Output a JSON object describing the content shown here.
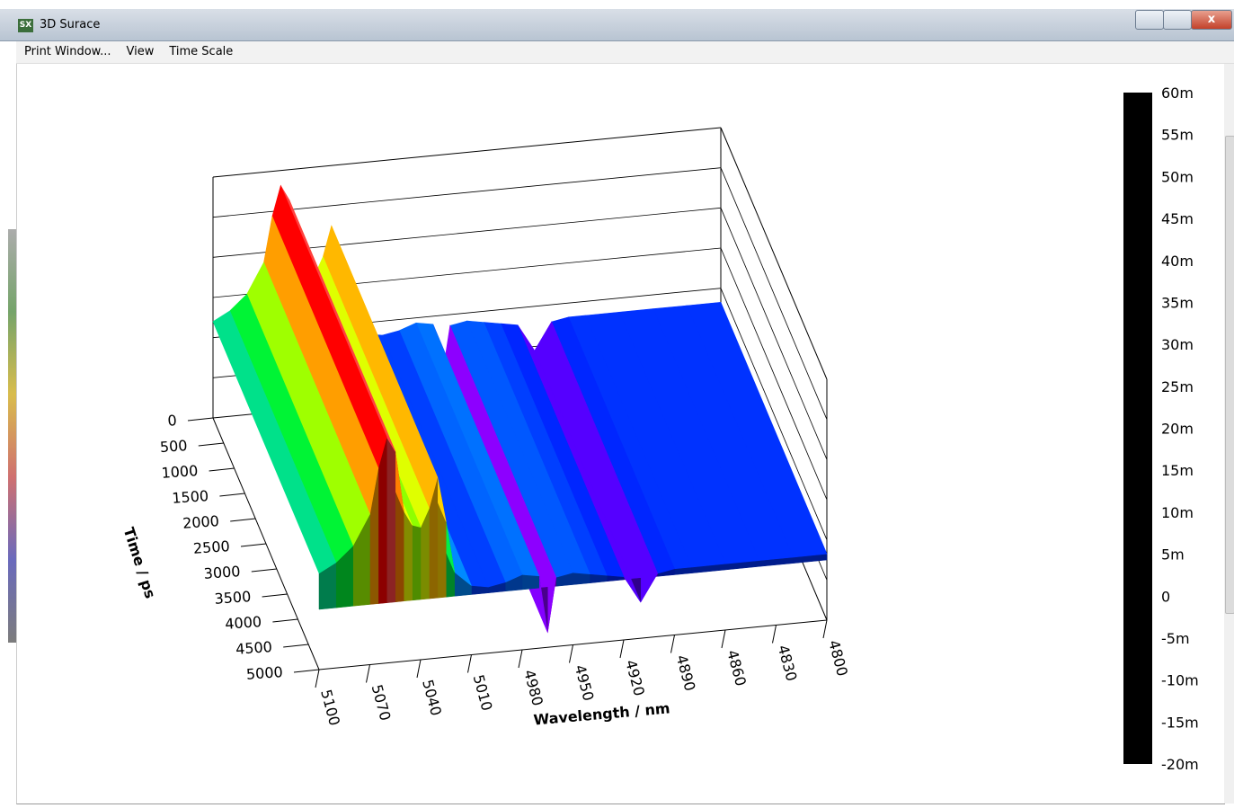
{
  "window": {
    "title": "3D Surace"
  },
  "menu": {
    "items": [
      "Print Window...",
      "View",
      "Time Scale"
    ]
  },
  "chart_data": {
    "type": "surface",
    "x_label": "Wavelength / nm",
    "y_label": "Time / ps",
    "x": [
      5100,
      5090,
      5080,
      5070,
      5065,
      5060,
      5055,
      5050,
      5045,
      5040,
      5035,
      5030,
      5025,
      5020,
      5010,
      5000,
      4990,
      4980,
      4970,
      4965,
      4960,
      4950,
      4940,
      4930,
      4920,
      4910,
      4900,
      4890,
      4880,
      4860,
      4840,
      4820,
      4800
    ],
    "values": [
      0.012,
      0.015,
      0.02,
      0.03,
      0.045,
      0.055,
      0.05,
      0.03,
      0.025,
      0.024,
      0.03,
      0.04,
      0.025,
      0.008,
      0.003,
      0.002,
      0.003,
      0.005,
      0.004,
      -0.015,
      0.003,
      0.004,
      0.003,
      0.002,
      0.001,
      -0.008,
      0.001,
      0.002,
      0.002,
      0.002,
      0.002,
      0.002,
      0.002
    ],
    "xlim": [
      5100,
      4800
    ],
    "xticks": [
      5100,
      5070,
      5040,
      5010,
      4980,
      4950,
      4920,
      4890,
      4860,
      4830,
      4800
    ],
    "ylim": [
      0,
      5000
    ],
    "yticks": [
      0,
      500,
      1000,
      1500,
      2000,
      2500,
      3000,
      3500,
      4000,
      4500,
      5000
    ],
    "zlim": [
      -0.02,
      0.06
    ],
    "colorbar_ticks": [
      {
        "value": 0.06,
        "label": "60m"
      },
      {
        "value": 0.055,
        "label": "55m"
      },
      {
        "value": 0.05,
        "label": "50m"
      },
      {
        "value": 0.045,
        "label": "45m"
      },
      {
        "value": 0.04,
        "label": "40m"
      },
      {
        "value": 0.035,
        "label": "35m"
      },
      {
        "value": 0.03,
        "label": "30m"
      },
      {
        "value": 0.025,
        "label": "25m"
      },
      {
        "value": 0.02,
        "label": "20m"
      },
      {
        "value": 0.015,
        "label": "15m"
      },
      {
        "value": 0.01,
        "label": "10m"
      },
      {
        "value": 0.005,
        "label": "5m"
      },
      0,
      {
        "value": -0.005,
        "label": "-5m"
      },
      {
        "value": -0.01,
        "label": "-10m"
      },
      {
        "value": -0.015,
        "label": "-15m"
      },
      {
        "value": -0.02,
        "label": "-20m"
      }
    ],
    "colorscale": [
      [
        -0.02,
        "#000000"
      ],
      [
        -0.012,
        "#ff00ff"
      ],
      [
        -0.005,
        "#7a00ff"
      ],
      [
        0,
        "#0000ff"
      ],
      [
        0.008,
        "#00c8ff"
      ],
      [
        0.02,
        "#00ff00"
      ],
      [
        0.028,
        "#ffff00"
      ],
      [
        0.038,
        "#ff9900"
      ],
      [
        0.05,
        "#ff0000"
      ],
      [
        0.06,
        "#ffffff"
      ]
    ]
  }
}
